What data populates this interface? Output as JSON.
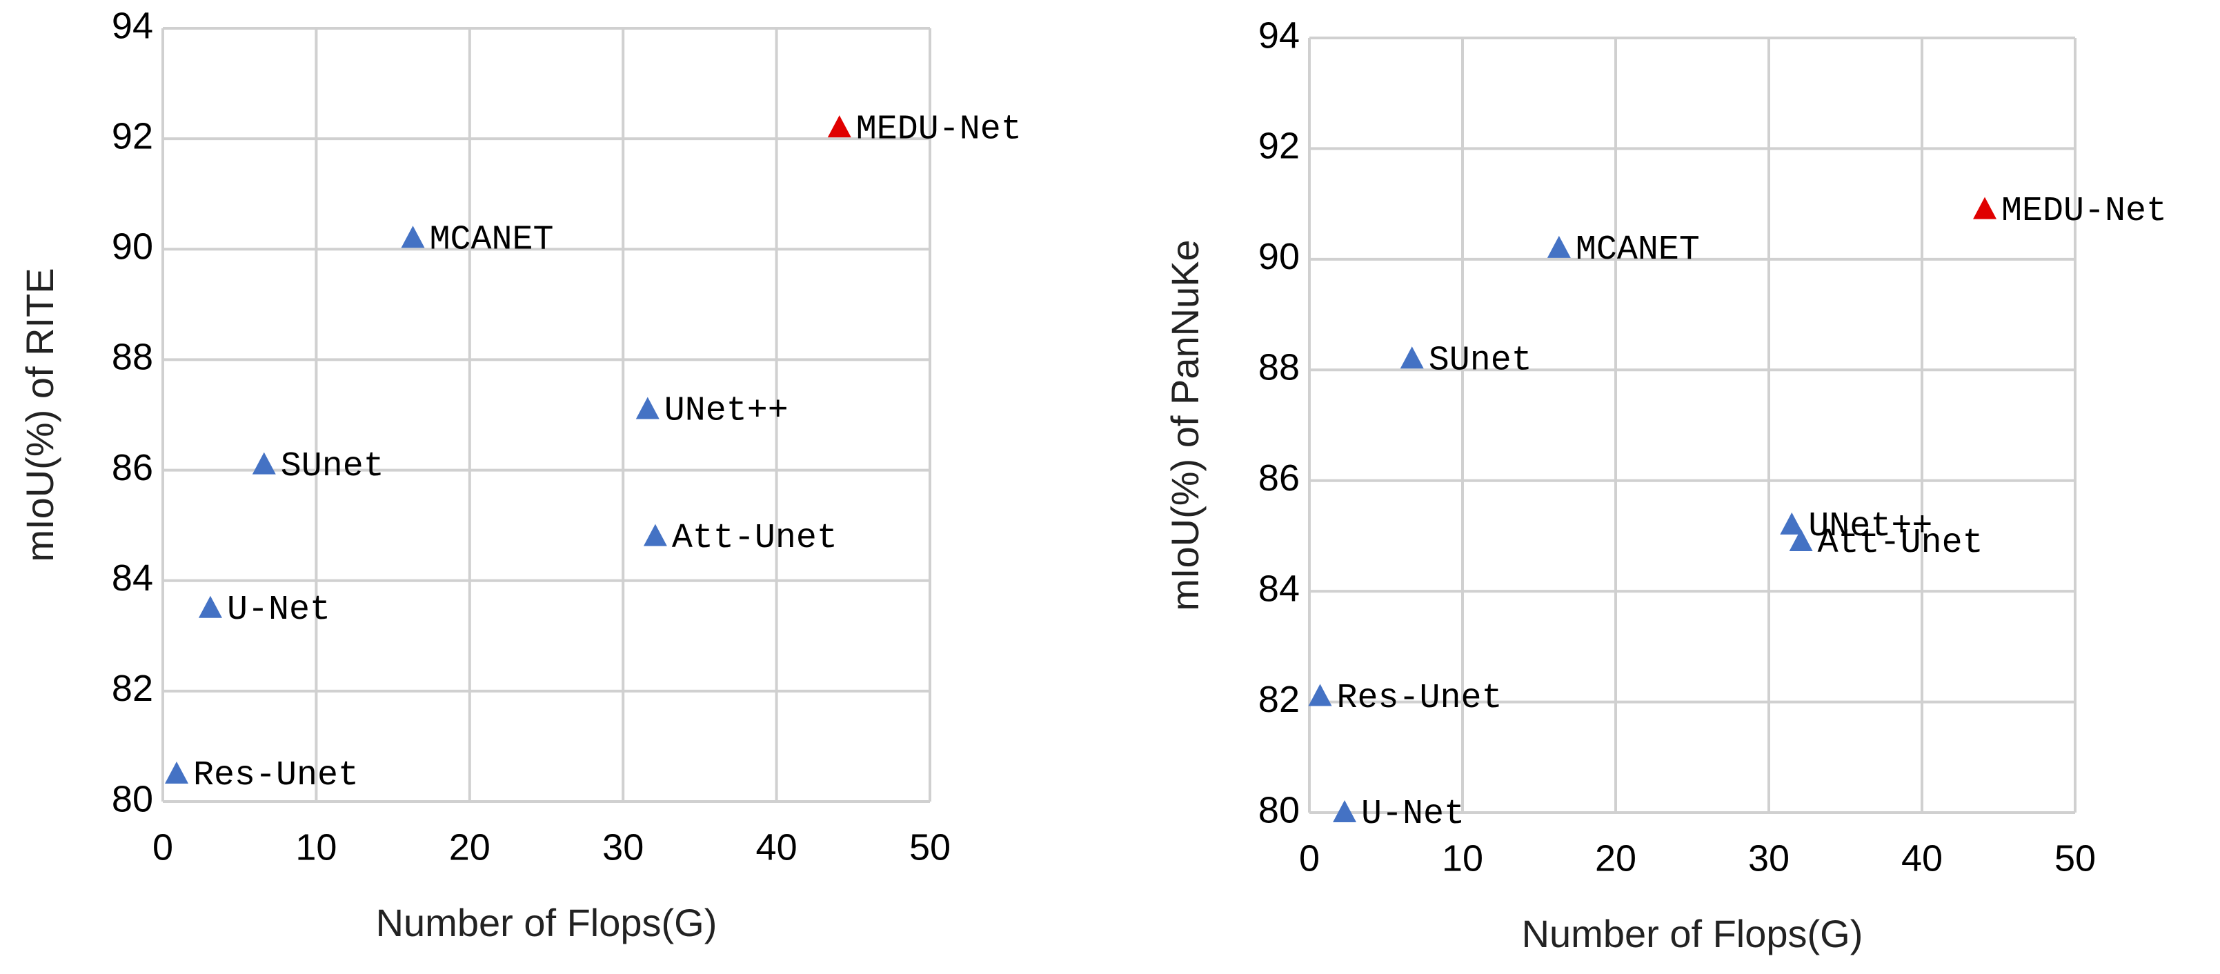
{
  "chart_data": [
    {
      "type": "scatter",
      "xlabel": "Number of Flops(G)",
      "ylabel": "mIoU(%) of RITE",
      "labels": [
        "MEDU-Net",
        "MCANET",
        "UNet++",
        "SUnet",
        "Att-Unet",
        "U-Net",
        "Res-Unet"
      ],
      "x": [
        44.1,
        16.3,
        31.6,
        6.6,
        32.1,
        3.1,
        0.9
      ],
      "values": [
        92.2,
        90.2,
        87.1,
        86.1,
        84.8,
        83.5,
        80.5
      ],
      "colors": [
        "#e00000",
        "#4472c4",
        "#4472c4",
        "#4472c4",
        "#4472c4",
        "#4472c4",
        "#4472c4"
      ],
      "label_color": "#4472c4",
      "xlim": [
        0,
        50
      ],
      "ylim": [
        80,
        94
      ],
      "xticks": [
        0,
        10,
        20,
        30,
        40,
        50
      ],
      "yticks": [
        80,
        82,
        84,
        86,
        88,
        90,
        92,
        94
      ],
      "grid": true
    },
    {
      "type": "scatter",
      "xlabel": "Number of Flops(G)",
      "ylabel": "mIoU(%) of PanNuKe",
      "labels": [
        "MEDU-Net",
        "MCANET",
        "SUnet",
        "UNet++",
        "Att-Unet",
        "Res-Unet",
        "U-Net"
      ],
      "x": [
        44.1,
        16.3,
        6.7,
        31.5,
        32.1,
        0.7,
        2.3
      ],
      "values": [
        90.9,
        90.2,
        88.2,
        85.2,
        84.9,
        82.1,
        80
      ],
      "colors": [
        "#e00000",
        "#4472c4",
        "#4472c4",
        "#4472c4",
        "#4472c4",
        "#4472c4",
        "#4472c4"
      ],
      "label_color": "#4472c4",
      "xlim": [
        0,
        50
      ],
      "ylim": [
        80,
        94
      ],
      "xticks": [
        0,
        10,
        20,
        30,
        40,
        50
      ],
      "yticks": [
        80,
        82,
        84,
        86,
        88,
        90,
        92,
        94
      ],
      "grid": true
    }
  ]
}
